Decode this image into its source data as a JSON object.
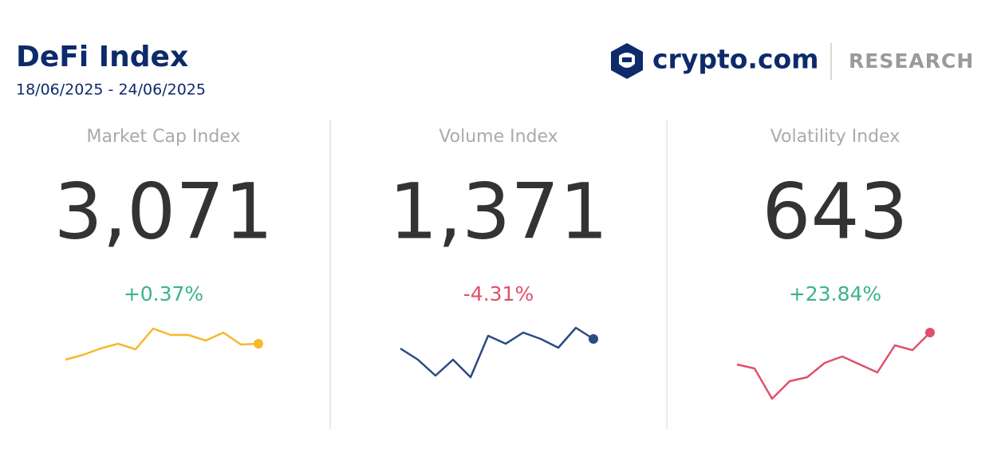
{
  "header": {
    "title": "DeFi Index",
    "date_range": "18/06/2025 - 24/06/2025",
    "brand": "crypto.com",
    "brand_section": "RESEARCH"
  },
  "cards": [
    {
      "label": "Market Cap Index",
      "value": "3,071",
      "change": "+0.37%",
      "change_color": "#3bb38f",
      "line_color": "#f7b82c",
      "sparkline": [
        59,
        65,
        73,
        79,
        72,
        98,
        90,
        90,
        83,
        93,
        78,
        79
      ]
    },
    {
      "label": "Volume Index",
      "value": "1,371",
      "change": "-4.31%",
      "change_color": "#e0506a",
      "line_color": "#2c4a82",
      "sparkline": [
        73,
        59,
        39,
        59,
        37,
        89,
        79,
        93,
        85,
        74,
        99,
        85
      ]
    },
    {
      "label": "Volatility Index",
      "value": "643",
      "change": "+23.84%",
      "change_color": "#3bb38f",
      "line_color": "#e0506a",
      "sparkline": [
        53,
        48,
        10,
        32,
        37,
        55,
        63,
        53,
        43,
        77,
        71,
        93
      ]
    }
  ]
}
